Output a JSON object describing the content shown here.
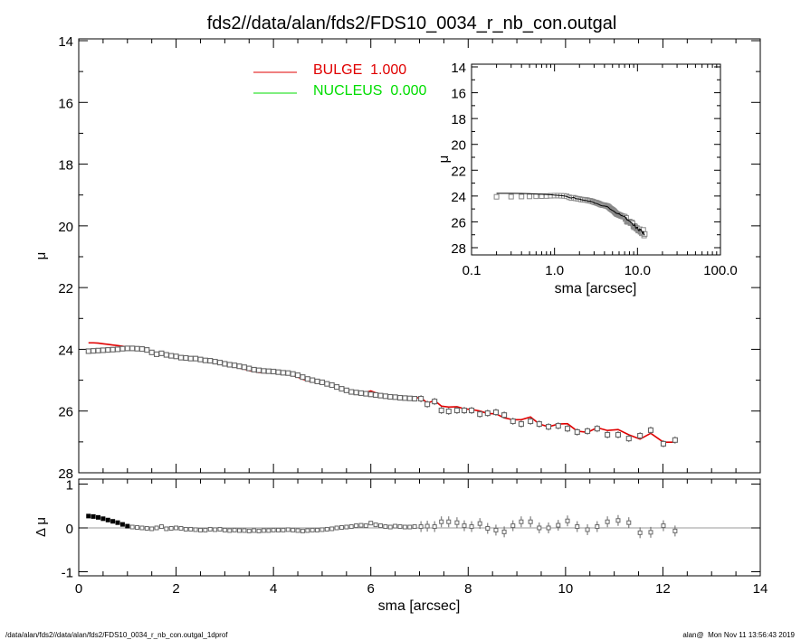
{
  "title": "fds2//data/alan/fds2/FDS10_0034_r_nb_con.outgal",
  "footer": {
    "left": "/data/alan/fds2//data/alan/fds2/FDS10_0034_r_nb_con.outgal_1dprof",
    "right": "alan@  Mon Nov 11 13:56:43 2019"
  },
  "colors": {
    "data": "#666666",
    "model": "#e00000",
    "nucleus": "#00dd00",
    "zero_line": "#999999"
  },
  "legend": [
    {
      "label": "BULGE  1.000",
      "color": "#e00000"
    },
    {
      "label": "NUCLEUS  0.000",
      "color": "#00dd00"
    }
  ],
  "chart_data": [
    {
      "type": "scatter",
      "panel": "main profile",
      "xlabel": "",
      "ylabel": "μ",
      "xlim": [
        0,
        14
      ],
      "ylim": [
        28,
        14
      ],
      "y_inverted": true,
      "yticks": [
        "14",
        "16",
        "18",
        "20",
        "22",
        "24",
        "26",
        "28"
      ],
      "series_note_fields": [
        "sma",
        "mu",
        "delta_mu"
      ],
      "points": [
        [
          0.2,
          24.06,
          0.27
        ],
        [
          0.3,
          24.05,
          0.26
        ],
        [
          0.4,
          24.04,
          0.24
        ],
        [
          0.5,
          24.03,
          0.21
        ],
        [
          0.6,
          24.02,
          0.18
        ],
        [
          0.7,
          24.01,
          0.15
        ],
        [
          0.8,
          24.0,
          0.12
        ],
        [
          0.9,
          23.98,
          0.08
        ],
        [
          1.0,
          23.97,
          0.04
        ],
        [
          1.1,
          23.97,
          0.02
        ],
        [
          1.2,
          23.98,
          0.01
        ],
        [
          1.3,
          23.99,
          0.0
        ],
        [
          1.4,
          24.02,
          -0.01
        ],
        [
          1.5,
          24.1,
          -0.02
        ],
        [
          1.6,
          24.16,
          0.0
        ],
        [
          1.7,
          24.13,
          0.03
        ],
        [
          1.8,
          24.18,
          -0.02
        ],
        [
          1.9,
          24.21,
          -0.01
        ],
        [
          2.0,
          24.23,
          0.0
        ],
        [
          2.1,
          24.27,
          -0.01
        ],
        [
          2.2,
          24.28,
          -0.03
        ],
        [
          2.3,
          24.3,
          -0.03
        ],
        [
          2.4,
          24.3,
          -0.04
        ],
        [
          2.5,
          24.33,
          -0.05
        ],
        [
          2.6,
          24.36,
          -0.05
        ],
        [
          2.7,
          24.37,
          -0.03
        ],
        [
          2.8,
          24.4,
          -0.04
        ],
        [
          2.9,
          24.43,
          -0.03
        ],
        [
          3.0,
          24.47,
          -0.05
        ],
        [
          3.1,
          24.5,
          -0.06
        ],
        [
          3.2,
          24.52,
          -0.05
        ],
        [
          3.3,
          24.55,
          -0.06
        ],
        [
          3.4,
          24.58,
          -0.06
        ],
        [
          3.5,
          24.62,
          -0.07
        ],
        [
          3.6,
          24.66,
          -0.06
        ],
        [
          3.7,
          24.68,
          -0.07
        ],
        [
          3.8,
          24.7,
          -0.06
        ],
        [
          3.9,
          24.71,
          -0.06
        ],
        [
          4.0,
          24.72,
          -0.05
        ],
        [
          4.1,
          24.74,
          -0.05
        ],
        [
          4.2,
          24.76,
          -0.05
        ],
        [
          4.3,
          24.77,
          -0.04
        ],
        [
          4.4,
          24.8,
          -0.05
        ],
        [
          4.5,
          24.84,
          -0.06
        ],
        [
          4.6,
          24.9,
          -0.07
        ],
        [
          4.7,
          24.96,
          -0.06
        ],
        [
          4.8,
          25.0,
          -0.05
        ],
        [
          4.9,
          25.04,
          -0.05
        ],
        [
          5.0,
          25.07,
          -0.04
        ],
        [
          5.1,
          25.12,
          -0.03
        ],
        [
          5.2,
          25.16,
          -0.02
        ],
        [
          5.3,
          25.22,
          0.0
        ],
        [
          5.4,
          25.28,
          0.01
        ],
        [
          5.5,
          25.33,
          0.02
        ],
        [
          5.6,
          25.38,
          0.03
        ],
        [
          5.7,
          25.4,
          0.05
        ],
        [
          5.8,
          25.42,
          0.06
        ],
        [
          5.9,
          25.44,
          0.05
        ],
        [
          6.0,
          25.46,
          0.11
        ],
        [
          6.1,
          25.48,
          0.07
        ],
        [
          6.2,
          25.5,
          0.05
        ],
        [
          6.3,
          25.52,
          0.03
        ],
        [
          6.4,
          25.54,
          0.02
        ],
        [
          6.5,
          25.55,
          0.04
        ],
        [
          6.6,
          25.57,
          0.03
        ],
        [
          6.7,
          25.58,
          0.02
        ],
        [
          6.8,
          25.59,
          0.02
        ],
        [
          6.9,
          25.6,
          0.03
        ],
        [
          7.03,
          25.6,
          0.03
        ],
        [
          7.16,
          25.78,
          0.04
        ],
        [
          7.31,
          25.69,
          0.03
        ],
        [
          7.45,
          25.98,
          0.14
        ],
        [
          7.6,
          26.01,
          0.14
        ],
        [
          7.77,
          25.98,
          0.12
        ],
        [
          7.92,
          25.98,
          0.05
        ],
        [
          8.07,
          25.98,
          0.03
        ],
        [
          8.24,
          26.1,
          0.1
        ],
        [
          8.4,
          26.07,
          -0.01
        ],
        [
          8.57,
          26.04,
          -0.05
        ],
        [
          8.74,
          26.13,
          -0.09
        ],
        [
          8.92,
          26.33,
          0.05
        ],
        [
          9.09,
          26.42,
          0.14
        ],
        [
          9.28,
          26.33,
          0.14
        ],
        [
          9.46,
          26.42,
          0.0
        ],
        [
          9.65,
          26.51,
          0.0
        ],
        [
          9.85,
          26.48,
          0.06
        ],
        [
          10.04,
          26.57,
          0.16
        ],
        [
          10.24,
          26.68,
          0.03
        ],
        [
          10.45,
          26.65,
          -0.04
        ],
        [
          10.65,
          26.57,
          0.03
        ],
        [
          10.86,
          26.77,
          0.14
        ],
        [
          11.08,
          26.77,
          0.17
        ],
        [
          11.3,
          26.89,
          0.12
        ],
        [
          11.53,
          26.8,
          -0.11
        ],
        [
          11.75,
          26.62,
          -0.1
        ],
        [
          12.01,
          27.06,
          0.05
        ],
        [
          12.25,
          26.94,
          -0.07
        ]
      ]
    },
    {
      "type": "scatter",
      "panel": "residual",
      "xlabel": "sma [arcsec]",
      "ylabel": "Δ μ",
      "xlim": [
        0,
        14
      ],
      "ylim": [
        -1,
        1
      ],
      "xticks": [
        "0",
        "2",
        "4",
        "6",
        "8",
        "10",
        "12",
        "14"
      ],
      "yticks": [
        "1",
        "0",
        "-1"
      ]
    },
    {
      "type": "scatter",
      "panel": "inset log profile",
      "xlabel": "sma [arcsec]",
      "ylabel": "μ",
      "xscale": "log",
      "xlim": [
        0.1,
        100
      ],
      "ylim": [
        28,
        14
      ],
      "xticks": [
        "0.1",
        "1.0",
        "10.0",
        "100.0"
      ],
      "yticks": [
        "14",
        "16",
        "18",
        "20",
        "22",
        "24",
        "26",
        "28"
      ]
    }
  ]
}
